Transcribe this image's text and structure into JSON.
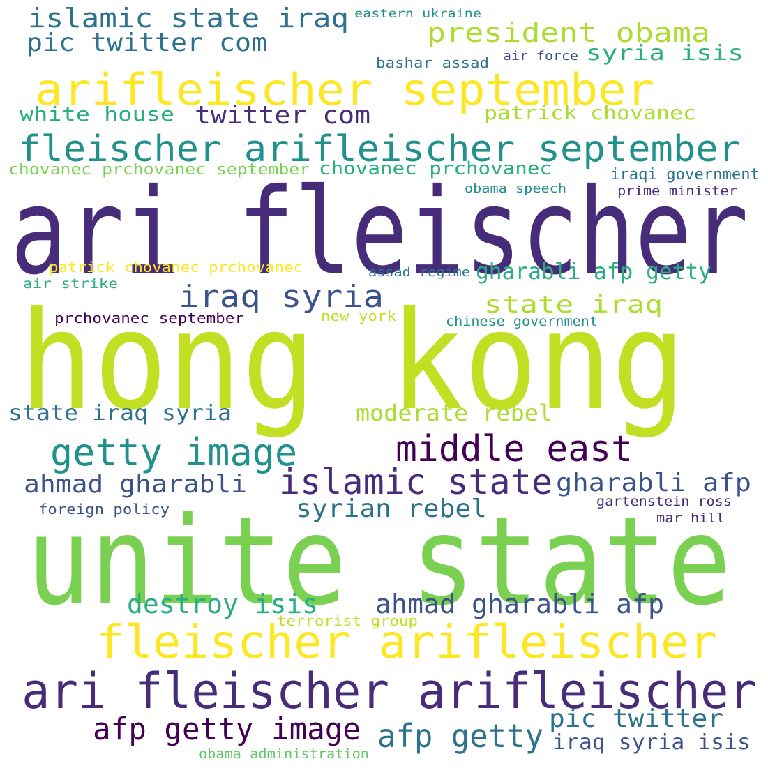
{
  "colors": {
    "purple": "#440154",
    "indigo": "#472c7a",
    "slate": "#3b528b",
    "steel": "#2c728e",
    "teal": "#21918c",
    "sea_green": "#28ae80",
    "green": "#5ec962",
    "lime_green": "#7ad151",
    "yellow_green": "#addc30",
    "chartreuse": "#c2df23",
    "yellow": "#fde725"
  },
  "words": [
    {
      "text": "islamic state iraq",
      "color": "steel"
    },
    {
      "text": "eastern ukraine",
      "color": "teal"
    },
    {
      "text": "pic twitter com",
      "color": "steel"
    },
    {
      "text": "president obama",
      "color": "yellow_green"
    },
    {
      "text": "syria isis",
      "color": "sea_green"
    },
    {
      "text": "bashar assad",
      "color": "steel"
    },
    {
      "text": "air force",
      "color": "slate"
    },
    {
      "text": "arifleischer september",
      "color": "yellow"
    },
    {
      "text": "white house",
      "color": "sea_green"
    },
    {
      "text": "twitter com",
      "color": "indigo"
    },
    {
      "text": "patrick chovanec",
      "color": "yellow_green"
    },
    {
      "text": "fleischer arifleischer september",
      "color": "teal"
    },
    {
      "text": "chovanec prchovanec september",
      "color": "lime_green"
    },
    {
      "text": "chovanec prchovanec",
      "color": "sea_green"
    },
    {
      "text": "iraqi government",
      "color": "steel"
    },
    {
      "text": "obama speech",
      "color": "teal"
    },
    {
      "text": "prime minister",
      "color": "indigo"
    },
    {
      "text": "ari fleischer",
      "color": "indigo"
    },
    {
      "text": "patrick chovanec prchovanec",
      "color": "yellow"
    },
    {
      "text": "assad regime",
      "color": "steel"
    },
    {
      "text": "gharabli afp getty",
      "color": "sea_green"
    },
    {
      "text": "air strike",
      "color": "sea_green"
    },
    {
      "text": "iraq syria",
      "color": "slate"
    },
    {
      "text": "state iraq",
      "color": "yellow_green"
    },
    {
      "text": "prchovanec september",
      "color": "purple"
    },
    {
      "text": "new york",
      "color": "chartreuse"
    },
    {
      "text": "chinese government",
      "color": "teal"
    },
    {
      "text": "hong kong",
      "color": "chartreuse"
    },
    {
      "text": "state iraq syria",
      "color": "steel"
    },
    {
      "text": "moderate rebel",
      "color": "yellow_green"
    },
    {
      "text": "getty image",
      "color": "teal"
    },
    {
      "text": "middle east",
      "color": "purple"
    },
    {
      "text": "ahmad gharabli",
      "color": "slate"
    },
    {
      "text": "islamic state",
      "color": "indigo"
    },
    {
      "text": "gharabli afp",
      "color": "slate"
    },
    {
      "text": "syrian rebel",
      "color": "steel"
    },
    {
      "text": "foreign policy",
      "color": "slate"
    },
    {
      "text": "gartenstein ross",
      "color": "indigo"
    },
    {
      "text": "mar hill",
      "color": "indigo"
    },
    {
      "text": "unite state",
      "color": "lime_green"
    },
    {
      "text": "destroy isis",
      "color": "sea_green"
    },
    {
      "text": "ahmad gharabli afp",
      "color": "slate"
    },
    {
      "text": "terrorist group",
      "color": "chartreuse"
    },
    {
      "text": "fleischer arifleischer",
      "color": "yellow"
    },
    {
      "text": "ari fleischer arifleischer",
      "color": "indigo"
    },
    {
      "text": "afp getty image",
      "color": "purple"
    },
    {
      "text": "pic twitter",
      "color": "steel"
    },
    {
      "text": "afp getty",
      "color": "steel"
    },
    {
      "text": "iraq syria isis",
      "color": "slate"
    },
    {
      "text": "obama administration",
      "color": "green"
    }
  ]
}
